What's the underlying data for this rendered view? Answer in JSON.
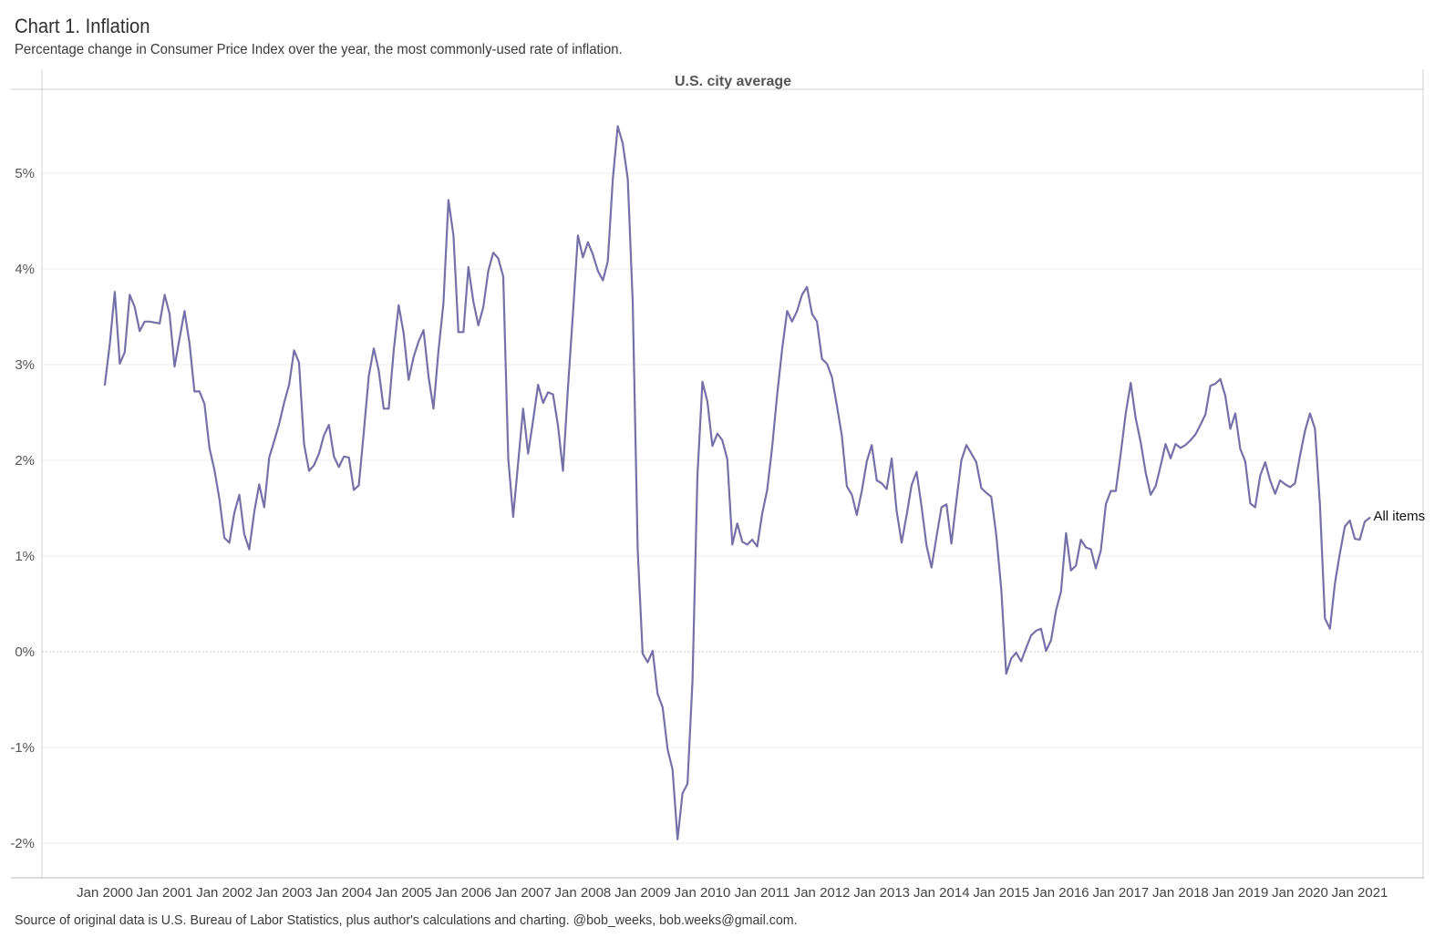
{
  "header": {
    "title": "Chart 1. Inflation",
    "subtitle": "Percentage change in Consumer Price Index over the year, the most commonly-used rate of inflation."
  },
  "footer": {
    "source": "Source of original data is U.S. Bureau of Labor Statistics, plus author's calculations and charting. @bob_weeks, bob.weeks@gmail.com."
  },
  "colors": {
    "line": "#7570a8",
    "grid": "#ececec",
    "zero": "#c8c8c8"
  },
  "chart_data": {
    "type": "line",
    "title": "Chart 1. Inflation",
    "subtitle": "Percentage change in Consumer Price Index over the year, the most commonly-used rate of inflation.",
    "panel_label": "U.S. city average",
    "xlabel": "",
    "ylabel": "",
    "ylim": [
      -2.4,
      5.9
    ],
    "y_ticks": [
      {
        "value": 5,
        "label": "5%"
      },
      {
        "value": 4,
        "label": "4%"
      },
      {
        "value": 3,
        "label": "3%"
      },
      {
        "value": 2,
        "label": "2%"
      },
      {
        "value": 1,
        "label": "1%"
      },
      {
        "value": 0,
        "label": "0%"
      },
      {
        "value": -1,
        "label": "-1%"
      },
      {
        "value": -2,
        "label": "-2%"
      }
    ],
    "x_ticks": [
      "Jan 2000",
      "Jan 2001",
      "Jan 2002",
      "Jan 2003",
      "Jan 2004",
      "Jan 2005",
      "Jan 2006",
      "Jan 2007",
      "Jan 2008",
      "Jan 2009",
      "Jan 2010",
      "Jan 2011",
      "Jan 2012",
      "Jan 2013",
      "Jan 2014",
      "Jan 2015",
      "Jan 2016",
      "Jan 2017",
      "Jan 2018",
      "Jan 2019",
      "Jan 2020",
      "Jan 2021"
    ],
    "grid": true,
    "x_start": "Jan 2000",
    "x_end": "Jun 2021",
    "series": [
      {
        "name": "All items",
        "values": [
          2.79,
          3.22,
          3.76,
          3.01,
          3.13,
          3.73,
          3.6,
          3.35,
          3.45,
          3.45,
          3.44,
          3.43,
          3.73,
          3.53,
          2.98,
          3.27,
          3.56,
          3.22,
          2.72,
          2.72,
          2.59,
          2.13,
          1.9,
          1.6,
          1.19,
          1.14,
          1.45,
          1.64,
          1.23,
          1.07,
          1.46,
          1.75,
          1.51,
          2.03,
          2.2,
          2.38,
          2.6,
          2.79,
          3.15,
          3.02,
          2.17,
          1.89,
          1.95,
          2.07,
          2.26,
          2.37,
          2.04,
          1.93,
          2.04,
          2.03,
          1.69,
          1.74,
          2.29,
          2.88,
          3.17,
          2.94,
          2.54,
          2.54,
          3.14,
          3.62,
          3.33,
          2.84,
          3.08,
          3.24,
          3.36,
          2.87,
          2.54,
          3.15,
          3.64,
          4.72,
          4.35,
          3.34,
          3.34,
          4.02,
          3.66,
          3.41,
          3.6,
          3.98,
          4.17,
          4.11,
          3.92,
          2.02,
          1.41,
          1.98,
          2.54,
          2.07,
          2.42,
          2.79,
          2.6,
          2.71,
          2.69,
          2.36,
          1.89,
          2.76,
          3.54,
          4.35,
          4.12,
          4.28,
          4.15,
          3.98,
          3.88,
          4.08,
          4.94,
          5.49,
          5.31,
          4.94,
          3.66,
          1.06,
          -0.02,
          -0.11,
          0.01,
          -0.44,
          -0.58,
          -1.02,
          -1.23,
          -1.96,
          -1.48,
          -1.38,
          -0.3,
          1.84,
          2.82,
          2.61,
          2.15,
          2.28,
          2.21,
          2.01,
          1.12,
          1.34,
          1.15,
          1.12,
          1.17,
          1.1,
          1.44,
          1.69,
          2.14,
          2.68,
          3.16,
          3.56,
          3.45,
          3.56,
          3.73,
          3.81,
          3.53,
          3.45,
          3.06,
          3.01,
          2.87,
          2.57,
          2.26,
          1.73,
          1.64,
          1.43,
          1.68,
          1.99,
          2.16,
          1.79,
          1.76,
          1.7,
          2.02,
          1.47,
          1.14,
          1.43,
          1.74,
          1.88,
          1.52,
          1.11,
          0.88,
          1.2,
          1.51,
          1.54,
          1.13,
          1.58,
          2.0,
          2.16,
          2.07,
          1.98,
          1.71,
          1.66,
          1.62,
          1.22,
          0.65,
          -0.23,
          -0.07,
          -0.01,
          -0.1,
          0.04,
          0.17,
          0.22,
          0.24,
          0.01,
          0.12,
          0.43,
          0.63,
          1.24,
          0.85,
          0.9,
          1.17,
          1.09,
          1.07,
          0.87,
          1.06,
          1.54,
          1.68,
          1.68,
          2.07,
          2.49,
          2.81,
          2.44,
          2.19,
          1.87,
          1.64,
          1.73,
          1.94,
          2.17,
          2.02,
          2.17,
          2.13,
          2.16,
          2.21,
          2.27,
          2.37,
          2.48,
          2.78,
          2.8,
          2.85,
          2.67,
          2.33,
          2.49,
          2.12,
          1.99,
          1.55,
          1.51,
          1.84,
          1.98,
          1.79,
          1.65,
          1.79,
          1.75,
          1.72,
          1.76,
          2.05,
          2.31,
          2.49,
          2.33,
          1.54,
          0.35,
          0.24,
          0.71,
          1.03,
          1.31,
          1.37,
          1.18,
          1.17,
          1.36,
          1.4
        ]
      }
    ]
  }
}
